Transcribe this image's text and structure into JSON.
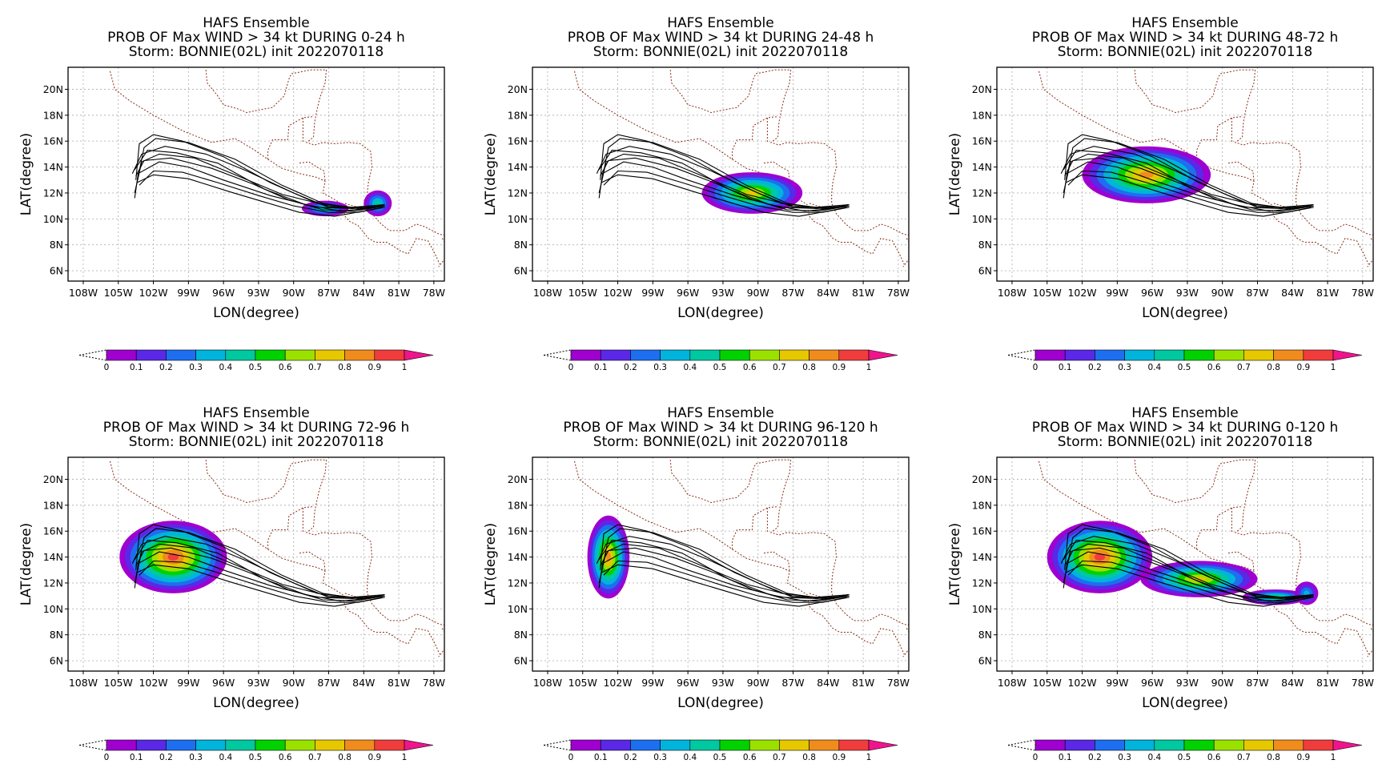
{
  "figure": {
    "panels": [
      {
        "title1": "HAFS Ensemble",
        "title2": "PROB OF Max WIND > 34 kt DURING  0-24 h",
        "title3": "Storm: BONNIE(02L) init 2022070118",
        "blobs": [
          {
            "lon": -87.3,
            "lat": 10.8,
            "rx": 2.0,
            "ry": 0.6,
            "p": 0.5
          },
          {
            "lon": -82.8,
            "lat": 11.2,
            "rx": 1.2,
            "ry": 1.0,
            "p": 0.45
          }
        ]
      },
      {
        "title1": "HAFS Ensemble",
        "title2": "PROB OF Max WIND > 34 kt DURING 24-48 h",
        "title3": "Storm: BONNIE(02L) init 2022070118",
        "blobs": [
          {
            "lon": -90.5,
            "lat": 12.0,
            "rx": 4.3,
            "ry": 1.6,
            "p": 0.8
          }
        ]
      },
      {
        "title1": "HAFS Ensemble",
        "title2": "PROB OF Max WIND > 34 kt DURING 48-72 h",
        "title3": "Storm: BONNIE(02L) init 2022070118",
        "blobs": [
          {
            "lon": -96.5,
            "lat": 13.4,
            "rx": 5.5,
            "ry": 2.2,
            "p": 0.9
          }
        ]
      },
      {
        "title1": "HAFS Ensemble",
        "title2": "PROB OF Max WIND > 34 kt DURING 72-96 h",
        "title3": "Storm: BONNIE(02L) init 2022070118",
        "blobs": [
          {
            "lon": -100.3,
            "lat": 14.0,
            "rx": 4.6,
            "ry": 2.8,
            "p": 0.95
          }
        ]
      },
      {
        "title1": "HAFS Ensemble",
        "title2": "PROB OF Max WIND > 34 kt DURING 96-120 h",
        "title3": "Storm: BONNIE(02L) init 2022070118",
        "blobs": [
          {
            "lon": -102.8,
            "lat": 14.0,
            "rx": 1.8,
            "ry": 3.2,
            "p": 0.85
          }
        ]
      },
      {
        "title1": "HAFS Ensemble",
        "title2": "PROB OF Max WIND > 34 kt DURING 0-120 h",
        "title3": "Storm: BONNIE(02L) init 2022070118",
        "blobs": [
          {
            "lon": -100.5,
            "lat": 14.0,
            "rx": 4.5,
            "ry": 2.8,
            "p": 0.95
          },
          {
            "lon": -92.0,
            "lat": 12.3,
            "rx": 5.0,
            "ry": 1.4,
            "p": 0.75
          },
          {
            "lon": -85.5,
            "lat": 10.9,
            "rx": 2.8,
            "ry": 0.6,
            "p": 0.55
          },
          {
            "lon": -82.8,
            "lat": 11.2,
            "rx": 1.0,
            "ry": 0.9,
            "p": 0.4
          }
        ]
      }
    ],
    "xlabel": "LON(degree)",
    "ylabel": "LAT(degree)",
    "xticks": [
      "108W",
      "105W",
      "102W",
      "99W",
      "96W",
      "93W",
      "90W",
      "87W",
      "84W",
      "81W",
      "78W"
    ],
    "yticks": [
      "6N",
      "8N",
      "10N",
      "12N",
      "14N",
      "16N",
      "18N",
      "20N"
    ],
    "colorbar": {
      "labels": [
        "0",
        "0.1",
        "0.2",
        "0.3",
        "0.4",
        "0.5",
        "0.6",
        "0.7",
        "0.8",
        "0.9",
        "1"
      ],
      "colors": [
        "#9f00d0",
        "#5a28e6",
        "#1e6ef0",
        "#00b4dc",
        "#00c8a0",
        "#00d200",
        "#9be100",
        "#e6c800",
        "#f08c1e",
        "#f03c3c",
        "#f0148c"
      ]
    },
    "tracks": [
      [
        [
          -103.6,
          11.6
        ],
        [
          -103.3,
          13.5
        ],
        [
          -101.5,
          14.4
        ],
        [
          -99,
          14.0
        ],
        [
          -96,
          13.0
        ],
        [
          -92,
          11.8
        ],
        [
          -88,
          10.9
        ],
        [
          -85,
          10.8
        ],
        [
          -82.2,
          11.0
        ]
      ],
      [
        [
          -103.6,
          12.0
        ],
        [
          -103.0,
          14.4
        ],
        [
          -101.5,
          15.0
        ],
        [
          -98.5,
          14.7
        ],
        [
          -95,
          13.4
        ],
        [
          -91,
          11.9
        ],
        [
          -87,
          11.0
        ],
        [
          -84,
          10.8
        ],
        [
          -82.3,
          11.0
        ]
      ],
      [
        [
          -103.4,
          12.8
        ],
        [
          -102.8,
          15.5
        ],
        [
          -101.8,
          16.2
        ],
        [
          -99,
          15.9
        ],
        [
          -95,
          14.6
        ],
        [
          -91,
          12.6
        ],
        [
          -87.5,
          11.2
        ],
        [
          -84.5,
          10.8
        ],
        [
          -82.5,
          11.0
        ]
      ],
      [
        [
          -103.5,
          13.0
        ],
        [
          -103.2,
          15.8
        ],
        [
          -102,
          16.5
        ],
        [
          -99.5,
          16.0
        ],
        [
          -96,
          14.8
        ],
        [
          -92,
          12.8
        ],
        [
          -88,
          11.2
        ],
        [
          -85,
          10.9
        ],
        [
          -82.2,
          11.1
        ]
      ],
      [
        [
          -103.8,
          13.5
        ],
        [
          -103,
          15.0
        ],
        [
          -101,
          15.6
        ],
        [
          -97.5,
          15.0
        ],
        [
          -94,
          13.7
        ],
        [
          -90,
          12.0
        ],
        [
          -87,
          10.9
        ],
        [
          -84,
          10.9
        ],
        [
          -82.5,
          11.0
        ]
      ],
      [
        [
          -103.2,
          12.6
        ],
        [
          -102,
          13.7
        ],
        [
          -99.5,
          13.6
        ],
        [
          -96.5,
          12.8
        ],
        [
          -93,
          11.8
        ],
        [
          -90,
          11.0
        ],
        [
          -87,
          10.5
        ],
        [
          -84.5,
          10.5
        ],
        [
          -82.2,
          10.9
        ]
      ],
      [
        [
          -103.5,
          13.3
        ],
        [
          -102.8,
          14.5
        ],
        [
          -100.5,
          14.7
        ],
        [
          -97,
          13.9
        ],
        [
          -93.5,
          12.7
        ],
        [
          -90.5,
          11.5
        ],
        [
          -87.5,
          10.7
        ],
        [
          -84.8,
          10.6
        ],
        [
          -82.2,
          11.0
        ]
      ],
      [
        [
          -103.4,
          12.8
        ],
        [
          -102,
          13.4
        ],
        [
          -99,
          13.1
        ],
        [
          -95.5,
          12.1
        ],
        [
          -92.5,
          11.3
        ],
        [
          -89.5,
          10.5
        ],
        [
          -86.5,
          10.2
        ],
        [
          -84,
          10.6
        ],
        [
          -82.4,
          10.9
        ]
      ],
      [
        [
          -103.6,
          13.8
        ],
        [
          -102.5,
          15.3
        ],
        [
          -100,
          15.1
        ],
        [
          -96.5,
          14.3
        ],
        [
          -92.5,
          12.3
        ],
        [
          -89,
          11.1
        ],
        [
          -86,
          10.6
        ],
        [
          -83.8,
          10.8
        ],
        [
          -82.3,
          11.1
        ]
      ]
    ],
    "coasts": [
      [
        [
          -105.7,
          21.4
        ],
        [
          -105.3,
          20.0
        ],
        [
          -104.0,
          19.1
        ],
        [
          -102.0,
          18.0
        ],
        [
          -99.5,
          16.8
        ],
        [
          -97,
          15.9
        ],
        [
          -95,
          16.2
        ],
        [
          -93.5,
          15.4
        ],
        [
          -92.2,
          14.6
        ],
        [
          -91,
          13.9
        ],
        [
          -89.5,
          13.5
        ],
        [
          -88,
          13.2
        ],
        [
          -87.3,
          12.9
        ],
        [
          -87.5,
          12.0
        ],
        [
          -86.5,
          11.5
        ],
        [
          -85.8,
          11.1
        ],
        [
          -85.6,
          10.2
        ],
        [
          -85.2,
          9.8
        ],
        [
          -84.5,
          9.5
        ],
        [
          -83.6,
          8.5
        ],
        [
          -83.0,
          8.2
        ],
        [
          -82.0,
          8.2
        ],
        [
          -80.8,
          7.5
        ],
        [
          -80.2,
          7.3
        ],
        [
          -79.5,
          8.5
        ],
        [
          -78.5,
          8.3
        ],
        [
          -77.9,
          7.3
        ],
        [
          -77.5,
          6.5
        ]
      ],
      [
        [
          -97.5,
          21.5
        ],
        [
          -97.4,
          20.5
        ],
        [
          -96.5,
          19.5
        ],
        [
          -96.0,
          18.8
        ],
        [
          -94.8,
          18.5
        ],
        [
          -94.0,
          18.2
        ],
        [
          -93,
          18.4
        ],
        [
          -91.8,
          18.6
        ],
        [
          -90.8,
          19.5
        ],
        [
          -90.4,
          20.8
        ],
        [
          -90.2,
          21.2
        ],
        [
          -88.5,
          21.5
        ],
        [
          -87.2,
          21.5
        ],
        [
          -87.3,
          20.5
        ],
        [
          -87.8,
          19.2
        ],
        [
          -88.0,
          18.4
        ],
        [
          -88.2,
          17.5
        ],
        [
          -88.3,
          16.3
        ],
        [
          -88.9,
          15.9
        ],
        [
          -88.2,
          15.7
        ],
        [
          -87.5,
          15.9
        ],
        [
          -86.5,
          15.8
        ],
        [
          -85.3,
          15.9
        ],
        [
          -84.3,
          15.8
        ],
        [
          -83.4,
          15.2
        ],
        [
          -83.3,
          14.0
        ],
        [
          -83.6,
          12.8
        ],
        [
          -83.7,
          12.0
        ],
        [
          -83.7,
          11.2
        ],
        [
          -83.3,
          10.4
        ],
        [
          -82.5,
          9.6
        ],
        [
          -81.8,
          9.1
        ],
        [
          -80.5,
          9.1
        ],
        [
          -79.5,
          9.6
        ],
        [
          -78.8,
          9.4
        ],
        [
          -77.5,
          8.8
        ],
        [
          -76.5,
          8.7
        ]
      ],
      [
        [
          -92.2,
          14.6
        ],
        [
          -92.2,
          15.3
        ],
        [
          -91.8,
          16.1
        ],
        [
          -90.5,
          16.1
        ],
        [
          -90.4,
          17.2
        ],
        [
          -89.2,
          17.8
        ],
        [
          -88.3,
          17.9
        ]
      ],
      [
        [
          -89.2,
          17.8
        ],
        [
          -89.2,
          15.9
        ]
      ],
      [
        [
          -89.5,
          14.3
        ],
        [
          -88.7,
          14.4
        ],
        [
          -88.0,
          14.0
        ],
        [
          -87.4,
          13.7
        ],
        [
          -87.3,
          12.9
        ]
      ],
      [
        [
          -85.6,
          11.2
        ],
        [
          -84.9,
          11.0
        ],
        [
          -84.2,
          10.8
        ],
        [
          -83.7,
          10.9
        ]
      ],
      [
        [
          -77.3,
          8.5
        ],
        [
          -76.8,
          7.9
        ],
        [
          -77.0,
          7.0
        ],
        [
          -77.6,
          6.3
        ]
      ]
    ]
  }
}
